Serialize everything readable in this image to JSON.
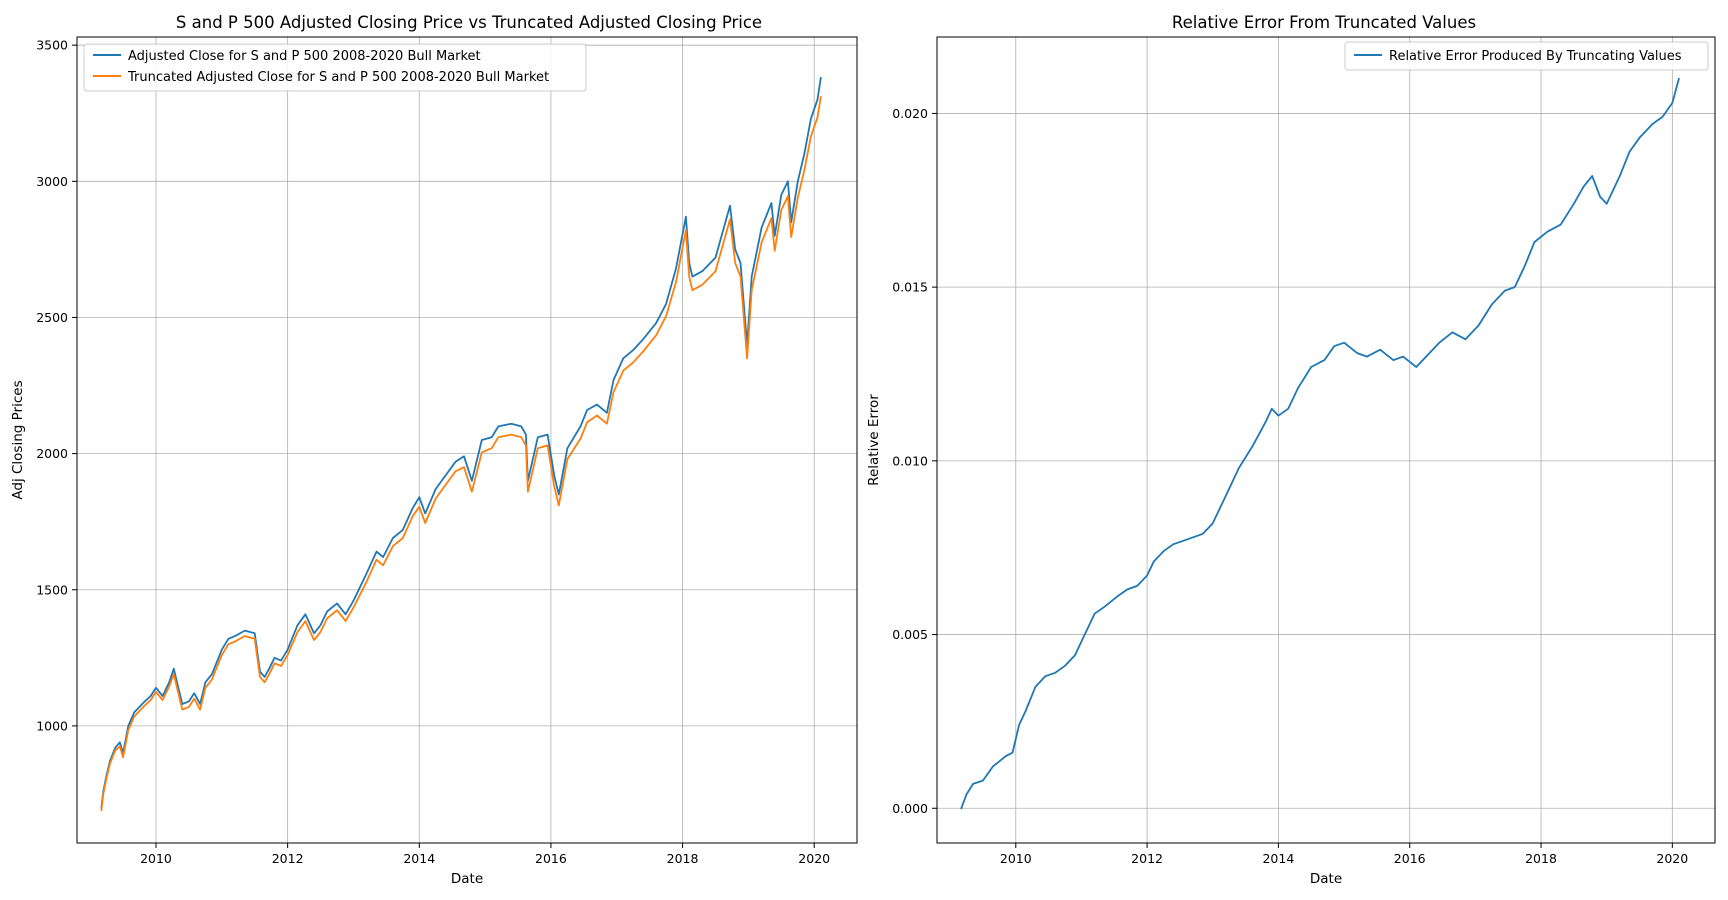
{
  "chart_data": [
    {
      "type": "line",
      "title": "S and P 500 Adjusted Closing Price vs Truncated Adjusted Closing Price",
      "xlabel": "Date",
      "ylabel": "Adj Closing Prices",
      "xlim": [
        2008.8,
        2020.65
      ],
      "ylim": [
        570,
        3530
      ],
      "xticks": [
        2010,
        2012,
        2014,
        2016,
        2018,
        2020
      ],
      "yticks": [
        1000,
        1500,
        2000,
        2500,
        3000,
        3500
      ],
      "grid": true,
      "legend": "top-left",
      "series": [
        {
          "name": "Adjusted Close for S and P 500 2008-2020 Bull Market",
          "color": "#1f77b4",
          "x": [
            2009.17,
            2009.2,
            2009.25,
            2009.3,
            2009.38,
            2009.45,
            2009.5,
            2009.58,
            2009.67,
            2009.75,
            2009.83,
            2009.92,
            2010.0,
            2010.1,
            2010.2,
            2010.27,
            2010.33,
            2010.4,
            2010.5,
            2010.58,
            2010.67,
            2010.75,
            2010.85,
            2011.0,
            2011.1,
            2011.2,
            2011.35,
            2011.5,
            2011.58,
            2011.65,
            2011.72,
            2011.8,
            2011.9,
            2012.0,
            2012.15,
            2012.27,
            2012.4,
            2012.5,
            2012.6,
            2012.75,
            2012.88,
            2013.0,
            2013.2,
            2013.35,
            2013.45,
            2013.6,
            2013.75,
            2013.9,
            2014.0,
            2014.09,
            2014.25,
            2014.4,
            2014.55,
            2014.68,
            2014.8,
            2014.95,
            2015.1,
            2015.2,
            2015.4,
            2015.55,
            2015.62,
            2015.65,
            2015.8,
            2015.95,
            2016.05,
            2016.12,
            2016.25,
            2016.45,
            2016.55,
            2016.7,
            2016.85,
            2016.95,
            2017.1,
            2017.25,
            2017.4,
            2017.6,
            2017.75,
            2017.9,
            2018.05,
            2018.1,
            2018.15,
            2018.3,
            2018.5,
            2018.72,
            2018.8,
            2018.88,
            2018.98,
            2019.05,
            2019.2,
            2019.35,
            2019.4,
            2019.5,
            2019.6,
            2019.65,
            2019.75,
            2019.85,
            2019.95,
            2020.05,
            2020.1
          ],
          "values": [
            700,
            760,
            820,
            870,
            920,
            940,
            900,
            1000,
            1050,
            1070,
            1090,
            1110,
            1140,
            1110,
            1160,
            1210,
            1150,
            1080,
            1090,
            1120,
            1080,
            1160,
            1190,
            1280,
            1320,
            1330,
            1350,
            1340,
            1200,
            1180,
            1210,
            1250,
            1240,
            1280,
            1370,
            1410,
            1340,
            1370,
            1420,
            1450,
            1410,
            1460,
            1560,
            1640,
            1620,
            1690,
            1720,
            1800,
            1840,
            1780,
            1870,
            1920,
            1970,
            1990,
            1900,
            2050,
            2060,
            2100,
            2110,
            2100,
            2070,
            1900,
            2060,
            2070,
            1920,
            1850,
            2020,
            2100,
            2160,
            2180,
            2150,
            2270,
            2350,
            2380,
            2420,
            2480,
            2550,
            2680,
            2870,
            2700,
            2650,
            2670,
            2720,
            2910,
            2750,
            2700,
            2400,
            2650,
            2830,
            2920,
            2800,
            2950,
            3000,
            2850,
            3000,
            3100,
            3230,
            3300,
            3380
          ]
        },
        {
          "name": "Truncated Adjusted Close for S and P 500 2008-2020 Bull Market",
          "color": "#ff7f0e",
          "x": [
            2009.17,
            2009.2,
            2009.25,
            2009.3,
            2009.38,
            2009.45,
            2009.5,
            2009.58,
            2009.67,
            2009.75,
            2009.83,
            2009.92,
            2010.0,
            2010.1,
            2010.2,
            2010.27,
            2010.33,
            2010.4,
            2010.5,
            2010.58,
            2010.67,
            2010.75,
            2010.85,
            2011.0,
            2011.1,
            2011.2,
            2011.35,
            2011.5,
            2011.58,
            2011.65,
            2011.72,
            2011.8,
            2011.9,
            2012.0,
            2012.15,
            2012.27,
            2012.4,
            2012.5,
            2012.6,
            2012.75,
            2012.88,
            2013.0,
            2013.2,
            2013.35,
            2013.45,
            2013.6,
            2013.75,
            2013.9,
            2014.0,
            2014.09,
            2014.25,
            2014.4,
            2014.55,
            2014.68,
            2014.8,
            2014.95,
            2015.1,
            2015.2,
            2015.4,
            2015.55,
            2015.62,
            2015.65,
            2015.8,
            2015.95,
            2016.05,
            2016.12,
            2016.25,
            2016.45,
            2016.55,
            2016.7,
            2016.85,
            2016.95,
            2017.1,
            2017.25,
            2017.4,
            2017.6,
            2017.75,
            2017.9,
            2018.05,
            2018.1,
            2018.15,
            2018.3,
            2018.5,
            2018.72,
            2018.8,
            2018.88,
            2018.98,
            2019.05,
            2019.2,
            2019.35,
            2019.4,
            2019.5,
            2019.6,
            2019.65,
            2019.75,
            2019.85,
            2019.95,
            2020.05,
            2020.1
          ],
          "values": [
            690,
            750,
            810,
            860,
            910,
            925,
            885,
            985,
            1035,
            1055,
            1075,
            1095,
            1125,
            1095,
            1145,
            1190,
            1130,
            1060,
            1070,
            1100,
            1060,
            1140,
            1170,
            1260,
            1300,
            1310,
            1330,
            1320,
            1180,
            1160,
            1190,
            1230,
            1220,
            1260,
            1345,
            1385,
            1315,
            1345,
            1395,
            1425,
            1385,
            1435,
            1530,
            1610,
            1590,
            1660,
            1690,
            1770,
            1805,
            1745,
            1835,
            1885,
            1935,
            1950,
            1860,
            2005,
            2020,
            2060,
            2070,
            2060,
            2030,
            1860,
            2020,
            2030,
            1880,
            1810,
            1980,
            2055,
            2115,
            2140,
            2110,
            2225,
            2305,
            2335,
            2375,
            2435,
            2505,
            2630,
            2820,
            2650,
            2600,
            2620,
            2670,
            2860,
            2700,
            2650,
            2350,
            2600,
            2775,
            2865,
            2745,
            2895,
            2945,
            2795,
            2940,
            3040,
            3165,
            3235,
            3310
          ]
        }
      ]
    },
    {
      "type": "line",
      "title": "Relative Error From Truncated Values",
      "xlabel": "Date",
      "ylabel": "Relative Error",
      "xlim": [
        2008.8,
        2020.65
      ],
      "ylim": [
        -0.001,
        0.0222
      ],
      "xticks": [
        2010,
        2012,
        2014,
        2016,
        2018,
        2020
      ],
      "yticks": [
        0.0,
        0.005,
        0.01,
        0.015,
        0.02
      ],
      "ytick_labels": [
        "0.000",
        "0.005",
        "0.010",
        "0.015",
        "0.020"
      ],
      "grid": true,
      "legend": "top-right",
      "series": [
        {
          "name": "Relative Error Produced By Truncating Values",
          "color": "#1f77b4",
          "x": [
            2009.17,
            2009.25,
            2009.35,
            2009.5,
            2009.65,
            2009.85,
            2009.95,
            2010.05,
            2010.15,
            2010.3,
            2010.45,
            2010.6,
            2010.75,
            2010.9,
            2011.05,
            2011.2,
            2011.35,
            2011.55,
            2011.7,
            2011.85,
            2012.0,
            2012.1,
            2012.25,
            2012.4,
            2012.55,
            2012.7,
            2012.85,
            2013.0,
            2013.2,
            2013.4,
            2013.6,
            2013.8,
            2013.9,
            2014.0,
            2014.15,
            2014.3,
            2014.5,
            2014.7,
            2014.85,
            2015.0,
            2015.2,
            2015.35,
            2015.55,
            2015.75,
            2015.9,
            2016.1,
            2016.25,
            2016.45,
            2016.65,
            2016.85,
            2017.05,
            2017.25,
            2017.45,
            2017.6,
            2017.75,
            2017.9,
            2018.1,
            2018.3,
            2018.5,
            2018.65,
            2018.78,
            2018.9,
            2019.0,
            2019.2,
            2019.35,
            2019.5,
            2019.7,
            2019.85,
            2020.0,
            2020.1
          ],
          "values": [
            0.0,
            0.0004,
            0.0007,
            0.0008,
            0.0012,
            0.0015,
            0.0016,
            0.0024,
            0.0028,
            0.0035,
            0.0038,
            0.0039,
            0.0041,
            0.0044,
            0.005,
            0.0056,
            0.0058,
            0.0061,
            0.0063,
            0.0064,
            0.0067,
            0.0071,
            0.0074,
            0.0076,
            0.0077,
            0.0078,
            0.0079,
            0.0082,
            0.009,
            0.0098,
            0.0104,
            0.0111,
            0.0115,
            0.0113,
            0.0115,
            0.0121,
            0.0127,
            0.0129,
            0.0133,
            0.0134,
            0.0131,
            0.013,
            0.0132,
            0.0129,
            0.013,
            0.0127,
            0.013,
            0.0134,
            0.0137,
            0.0135,
            0.0139,
            0.0145,
            0.0149,
            0.015,
            0.0156,
            0.0163,
            0.0166,
            0.0168,
            0.0174,
            0.0179,
            0.0182,
            0.0176,
            0.0174,
            0.0182,
            0.0189,
            0.0193,
            0.0197,
            0.0199,
            0.0203,
            0.021
          ]
        }
      ]
    }
  ]
}
